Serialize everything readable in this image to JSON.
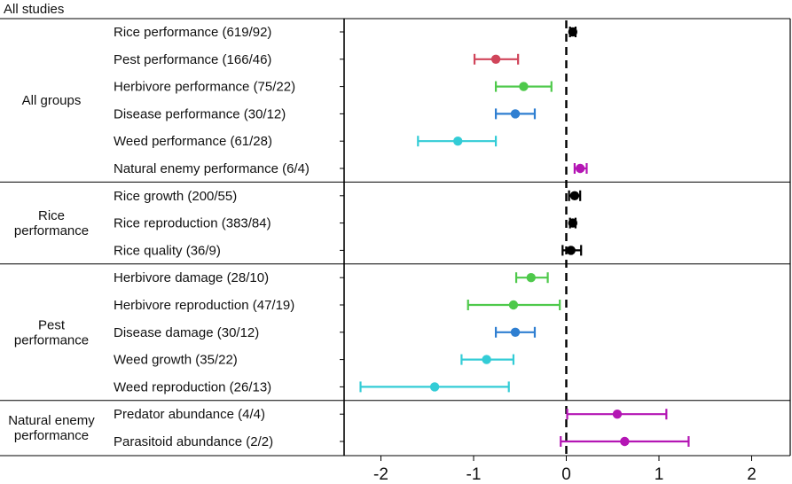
{
  "header": "All studies",
  "groups": [
    {
      "label_lines": [
        "All groups"
      ],
      "start": 0,
      "end": 5
    },
    {
      "label_lines": [
        "Rice",
        "performance"
      ],
      "start": 6,
      "end": 8
    },
    {
      "label_lines": [
        "Pest",
        "performance"
      ],
      "start": 9,
      "end": 13
    },
    {
      "label_lines": [
        "Natural enemy",
        "performance"
      ],
      "start": 14,
      "end": 15
    }
  ],
  "colors": {
    "black": "#000000",
    "red": "#d0455a",
    "green": "#4ec94b",
    "blue": "#2f7fd1",
    "cyan": "#33ccd6",
    "magenta": "#b416b4"
  },
  "chart_data": {
    "type": "forest",
    "xlim": [
      -2.4,
      2.4
    ],
    "xticks": [
      -2,
      -1,
      0,
      1,
      2
    ],
    "xtick_labels": [
      "-2",
      "-1",
      "0",
      "1",
      "2"
    ],
    "reference_line": 0,
    "rows": [
      {
        "label": "Rice performance (619/92)",
        "estimate": 0.07,
        "lower": 0.04,
        "upper": 0.1,
        "color": "black"
      },
      {
        "label": "Pest performance (166/46)",
        "estimate": -0.76,
        "lower": -0.99,
        "upper": -0.52,
        "color": "red"
      },
      {
        "label": "Herbivore performance (75/22)",
        "estimate": -0.46,
        "lower": -0.76,
        "upper": -0.16,
        "color": "green"
      },
      {
        "label": "Disease performance (30/12)",
        "estimate": -0.55,
        "lower": -0.76,
        "upper": -0.34,
        "color": "blue"
      },
      {
        "label": "Weed performance (61/28)",
        "estimate": -1.17,
        "lower": -1.6,
        "upper": -0.76,
        "color": "cyan"
      },
      {
        "label": "Natural enemy performance (6/4)",
        "estimate": 0.15,
        "lower": 0.09,
        "upper": 0.22,
        "color": "magenta"
      },
      {
        "label": "Rice growth (200/55)",
        "estimate": 0.09,
        "lower": 0.03,
        "upper": 0.15,
        "color": "black"
      },
      {
        "label": "Rice reproduction (383/84)",
        "estimate": 0.07,
        "lower": 0.04,
        "upper": 0.1,
        "color": "black"
      },
      {
        "label": "Rice quality (36/9)",
        "estimate": 0.05,
        "lower": -0.04,
        "upper": 0.16,
        "color": "black"
      },
      {
        "label": "Herbivore damage (28/10)",
        "estimate": -0.38,
        "lower": -0.54,
        "upper": -0.2,
        "color": "green"
      },
      {
        "label": "Herbivore reproduction (47/19)",
        "estimate": -0.57,
        "lower": -1.06,
        "upper": -0.07,
        "color": "green"
      },
      {
        "label": "Disease damage (30/12)",
        "estimate": -0.55,
        "lower": -0.76,
        "upper": -0.34,
        "color": "blue"
      },
      {
        "label": "Weed growth (35/22)",
        "estimate": -0.86,
        "lower": -1.13,
        "upper": -0.57,
        "color": "cyan"
      },
      {
        "label": "Weed reproduction (26/13)",
        "estimate": -1.42,
        "lower": -2.22,
        "upper": -0.62,
        "color": "cyan"
      },
      {
        "label": "Predator abundance (4/4)",
        "estimate": 0.55,
        "lower": 0.01,
        "upper": 1.08,
        "color": "magenta"
      },
      {
        "label": "Parasitoid abundance (2/2)",
        "estimate": 0.63,
        "lower": -0.06,
        "upper": 1.32,
        "color": "magenta"
      }
    ]
  }
}
